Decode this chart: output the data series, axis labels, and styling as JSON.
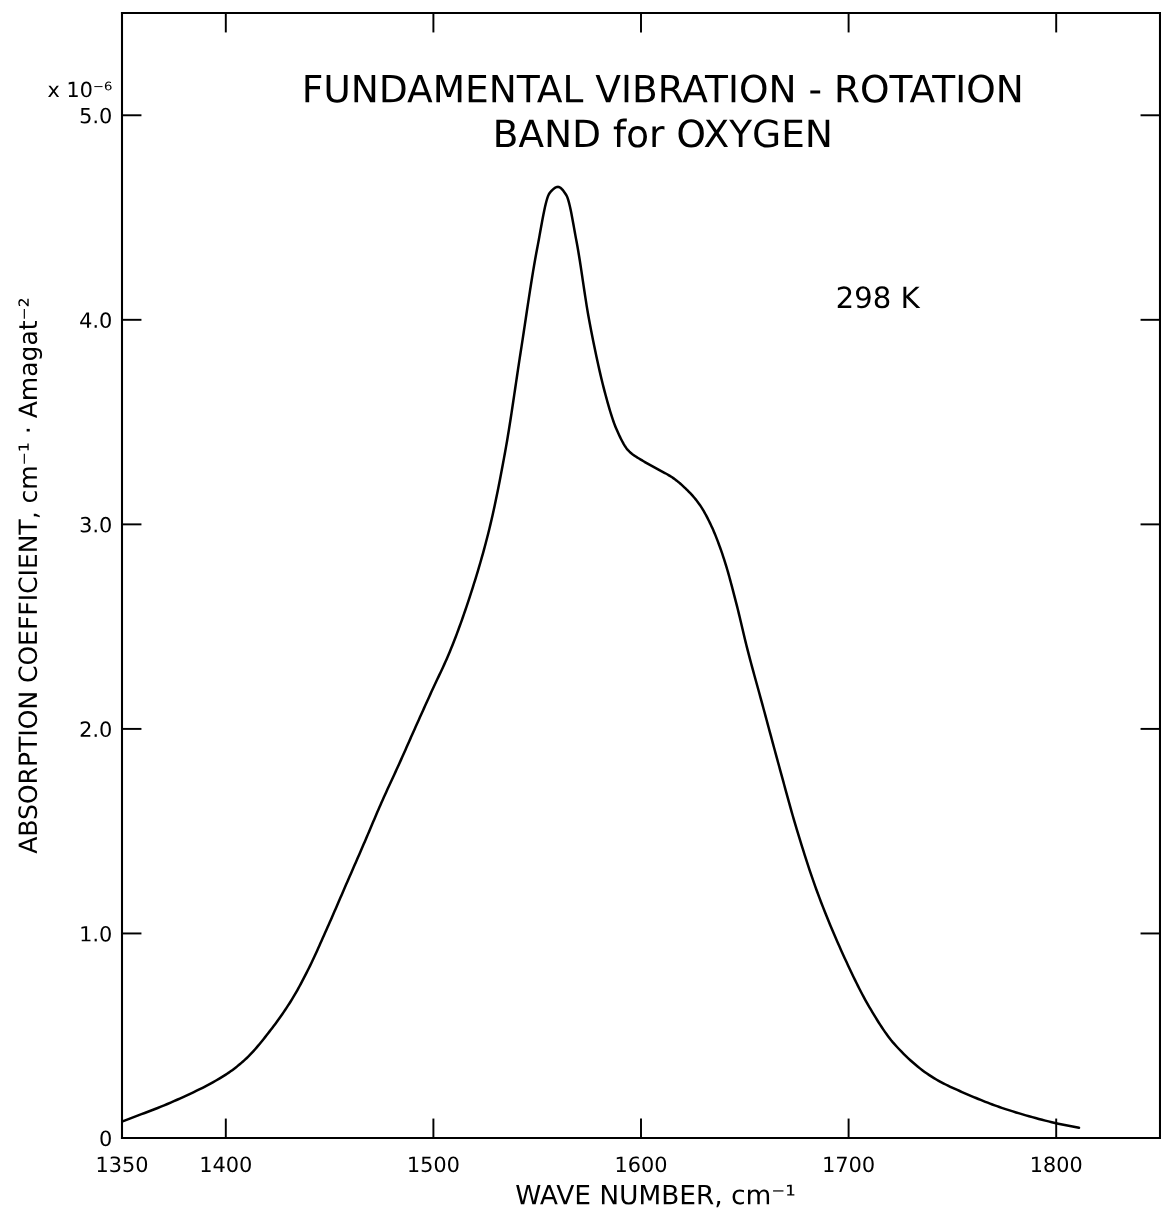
{
  "chart_data": {
    "type": "line",
    "title": "FUNDAMENTAL VIBRATION - ROTATION\nBAND for OXYGEN",
    "xlabel": "WAVE NUMBER, cm⁻¹",
    "ylabel": "ABSORPTION COEFFICIENT, cm⁻¹ · Amagat⁻²",
    "annotations": [
      "298 K",
      "x 10⁻⁶"
    ],
    "series": [
      {
        "color": "#000000",
        "x": [
          1350,
          1375,
          1400,
          1410,
          1421,
          1432,
          1440,
          1449,
          1458,
          1467,
          1475,
          1484,
          1491,
          1499,
          1508,
          1517,
          1527,
          1535,
          1542,
          1550,
          1556,
          1560,
          1564,
          1569,
          1575,
          1583,
          1588,
          1594,
          1601,
          1608,
          1615,
          1621,
          1628,
          1634,
          1640,
          1646,
          1651,
          1659,
          1667,
          1675,
          1685,
          1699,
          1710,
          1722,
          1740,
          1758,
          1776,
          1801,
          1811
        ],
        "values": [
          0.08,
          0.18,
          0.31,
          0.39,
          0.52,
          0.68,
          0.83,
          1.03,
          1.24,
          1.45,
          1.64,
          1.84,
          2.0,
          2.18,
          2.38,
          2.63,
          2.98,
          3.38,
          3.84,
          4.35,
          4.62,
          4.65,
          4.61,
          4.38,
          4.0,
          3.63,
          3.47,
          3.36,
          3.31,
          3.27,
          3.23,
          3.18,
          3.1,
          2.99,
          2.83,
          2.61,
          2.4,
          2.1,
          1.8,
          1.51,
          1.2,
          0.86,
          0.64,
          0.46,
          0.3,
          0.21,
          0.14,
          0.07,
          0.05
        ]
      }
    ],
    "xlim": [
      1350,
      1850
    ],
    "xticks": [
      1350,
      1400,
      1500,
      1600,
      1700,
      1800
    ],
    "ylim": [
      0,
      5.5
    ],
    "yticks": [
      {
        "value": 0,
        "label": "0"
      },
      {
        "value": 1,
        "label": "1.0"
      },
      {
        "value": 2,
        "label": "2.0"
      },
      {
        "value": 3,
        "label": "3.0"
      },
      {
        "value": 4,
        "label": "4.0"
      },
      {
        "value": 5,
        "label": "5.0"
      }
    ],
    "line_style": "solid"
  }
}
